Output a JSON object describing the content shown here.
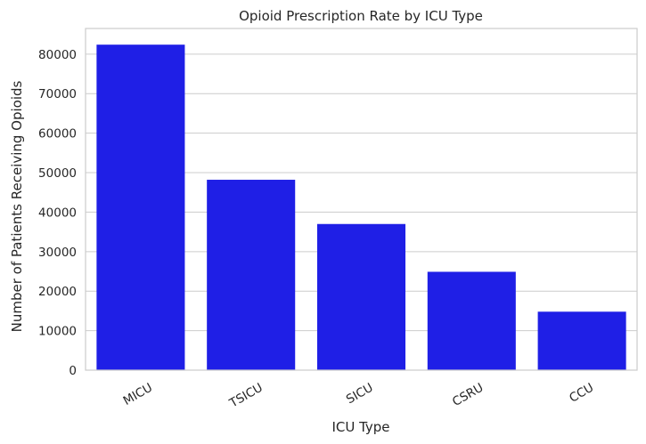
{
  "chart_data": {
    "type": "bar",
    "title": "Opioid Prescription Rate by ICU Type",
    "xlabel": "ICU Type",
    "ylabel": "Number of Patients Receiving Opioids",
    "categories": [
      "MICU",
      "TSICU",
      "SICU",
      "CSRU",
      "CCU"
    ],
    "values": [
      82400,
      48200,
      37000,
      24900,
      14800
    ],
    "ylim": [
      0,
      86500
    ],
    "yticks": [
      0,
      10000,
      20000,
      30000,
      40000,
      50000,
      60000,
      70000,
      80000
    ],
    "grid": "horizontal",
    "bar_color": "#1f1fe6"
  }
}
